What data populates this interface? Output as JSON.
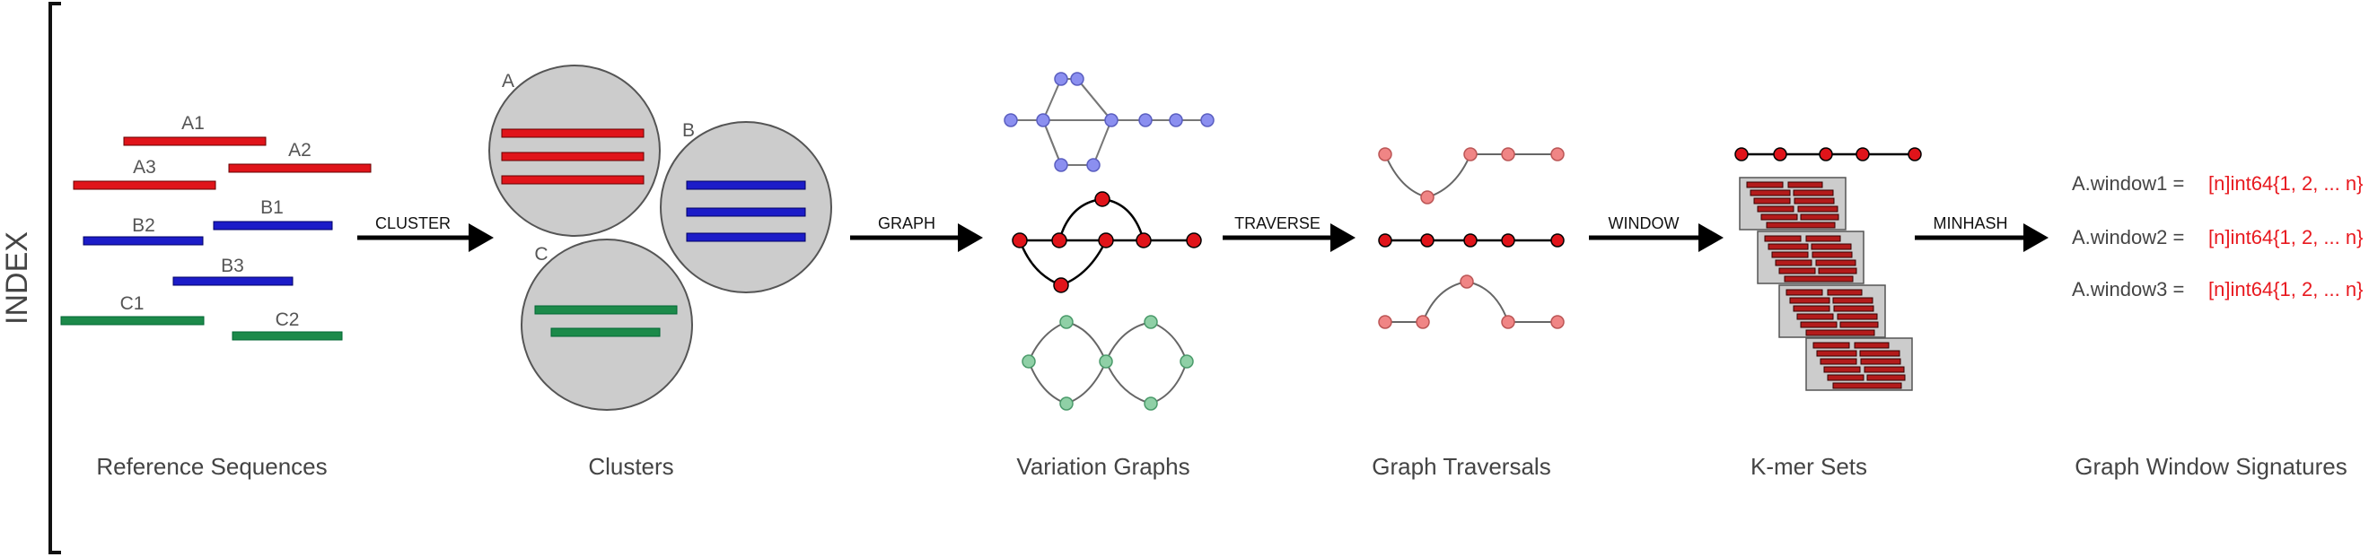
{
  "side_label": "INDEX",
  "stages": {
    "reference_sequences": "Reference Sequences",
    "clusters": "Clusters",
    "variation_graphs": "Variation Graphs",
    "graph_traversals": "Graph Traversals",
    "kmer_sets": "K-mer Sets",
    "signatures": "Graph Window Signatures"
  },
  "operations": {
    "cluster": "CLUSTER",
    "graph": "GRAPH",
    "traverse": "TRAVERSE",
    "window": "WINDOW",
    "minhash": "MINHASH"
  },
  "sequences": {
    "a1": "A1",
    "a2": "A2",
    "a3": "A3",
    "b1": "B1",
    "b2": "B2",
    "b3": "B3",
    "c1": "C1",
    "c2": "C2"
  },
  "cluster_labels": {
    "a": "A",
    "b": "B",
    "c": "C"
  },
  "signatures": {
    "w1_name": "A.window1 =",
    "w1_value": "[n]int64{1, 2, ... n}",
    "w2_name": "A.window2 =",
    "w2_value": "[n]int64{1, 2, ... n}",
    "w3_name": "A.window3 =",
    "w3_value": "[n]int64{1, 2, ... n}"
  },
  "colors": {
    "red": "#e0141a",
    "blue": "#1c1cc8",
    "green": "#1c8a4a",
    "cluster_fill": "#cccccc",
    "light_blue_node": "#8b8ff0",
    "light_green_node": "#8fd0a6",
    "light_red_node": "#f08585",
    "kmer_red": "#b31b1b",
    "signature_red": "#e8191f"
  }
}
